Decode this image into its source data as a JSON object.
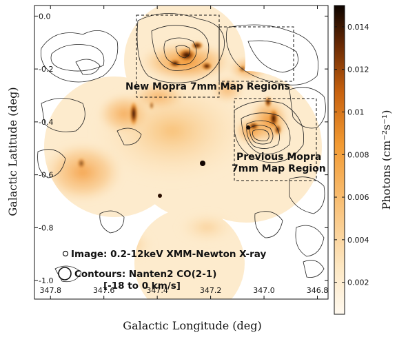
{
  "figure": {
    "colors": {
      "background": "#ffffff",
      "emission_low": "#fde8c4",
      "emission_mid": "#f6a53c",
      "emission_high": "#1a0800",
      "contour": "#222222",
      "region_box": "#111111"
    },
    "x_axis": {
      "title": "Galactic Longitude (deg)",
      "range": [
        347.86,
        346.76
      ],
      "ticks": [
        "347.8",
        "347.6",
        "347.4",
        "347.2",
        "347.0",
        "346.8"
      ]
    },
    "y_axis": {
      "title": "Galactic Latitude (deg)",
      "range": [
        0.04,
        -1.07
      ],
      "ticks": [
        "0.0",
        "-0.2",
        "-0.4",
        "-0.6",
        "-0.8",
        "-1.0"
      ]
    },
    "colorbar": {
      "title": "Photons (cm⁻²s⁻¹)",
      "range": [
        0.0005,
        0.015
      ],
      "ticks": [
        "0.014",
        "0.012",
        "0.01",
        "0.008",
        "0.006",
        "0.004",
        "0.002"
      ]
    },
    "regions": [
      {
        "name": "New Mopra 7mm Map Regions",
        "lines": [
          "New Mopra 7mm Map Regions"
        ],
        "l_range": [
          347.52,
          347.31
        ],
        "b_range": [
          0.02,
          -0.29
        ]
      },
      {
        "name": "New Mopra 7mm Map Regions",
        "lines": [],
        "l_range": [
          347.31,
          346.98
        ],
        "b_range": [
          -0.01,
          -0.19
        ]
      },
      {
        "name": "Previous Mopra 7mm Map Region",
        "lines": [
          "Previous Mopra",
          "7mm Map Region"
        ],
        "l_range": [
          347.16,
          346.94
        ],
        "b_range": [
          -0.28,
          -0.56
        ]
      }
    ],
    "legend": {
      "image_label": "Image: 0.2-12keV XMM-Newton X-ray",
      "contour_label": "Contours: Nanten2 CO(2-1)",
      "velocity_label": "[-18 to 0 km/s]"
    }
  }
}
